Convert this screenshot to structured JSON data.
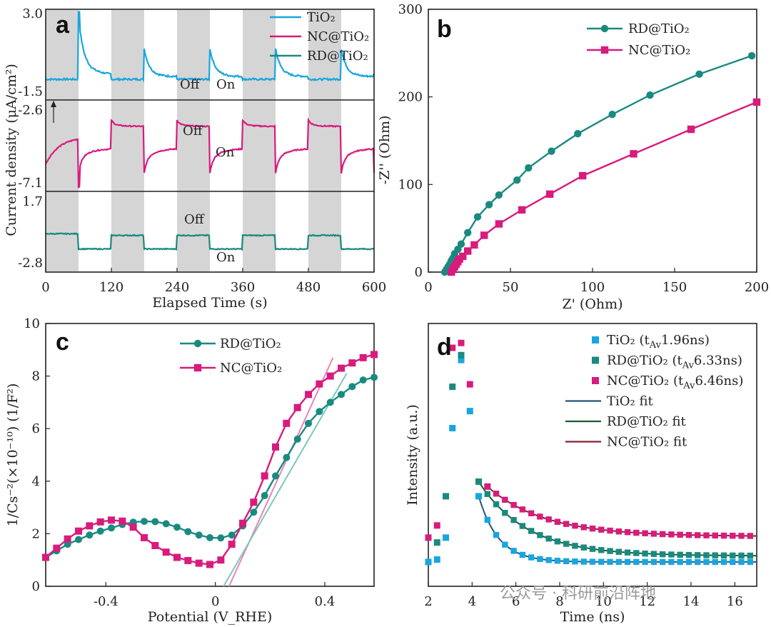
{
  "colors": {
    "tio2": "#19a6df",
    "nc": "#d81b7d",
    "rd": "#1a8a80",
    "tio2_fit": "#27537a",
    "rd_fit": "#1f5a2c",
    "nc_fit": "#8a1f2a",
    "nc_line": "#eb84b5",
    "rd_line": "#7cc7bb",
    "shade": "#d5d5d5"
  },
  "watermark": "公众号 · 科研前沿阵地",
  "chart_data": [
    {
      "id": "a",
      "type": "line",
      "panel_label": "a",
      "xlabel": "Elapsed Time (s)",
      "ylabel": "Current density (μA/cm²)",
      "xlim": [
        0,
        600
      ],
      "xticks": [
        "0",
        "120",
        "240",
        "360",
        "480",
        "600"
      ],
      "off_periods": [
        [
          0,
          60
        ],
        [
          120,
          180
        ],
        [
          240,
          300
        ],
        [
          360,
          420
        ],
        [
          480,
          540
        ]
      ],
      "legend": [
        "TiO₂",
        "NC@TiO₂",
        "RD@TiO₂"
      ],
      "annotations": {
        "off": "Off",
        "on": "On"
      },
      "series": [
        {
          "name": "TiO₂",
          "ytop_label": "3.0",
          "ybottom_label": "-1.5",
          "profile": {
            "base": 0.23,
            "spike": 0.92,
            "spike_decay": 0.55,
            "step": 0.13
          }
        },
        {
          "name": "NC@TiO₂",
          "ytop_label": "-2.6",
          "ybottom_label": "-7.1",
          "profile": {
            "off_level": 0.72,
            "on_level": 0.35,
            "dip": 0.15
          }
        },
        {
          "name": "RD@TiO₂",
          "ytop_label": "1.7",
          "ybottom_label": "-2.8",
          "profile": {
            "off_level": 0.45,
            "on_level": 0.28
          }
        }
      ]
    },
    {
      "id": "b",
      "type": "line",
      "panel_label": "b",
      "xlabel": "Z' (Ohm)",
      "ylabel": "-Z'' (Ohm)",
      "xlim": [
        0,
        200
      ],
      "ylim": [
        0,
        300
      ],
      "xticks": [
        0,
        50,
        100,
        150,
        200
      ],
      "yticks": [
        0,
        100,
        200,
        300
      ],
      "series": [
        {
          "name": "RD@TiO₂",
          "marker": "circle",
          "x": [
            10,
            11,
            12,
            13,
            14,
            15,
            16,
            18,
            20,
            24,
            30,
            37,
            43,
            54,
            61,
            75,
            91,
            112,
            135,
            165,
            197
          ],
          "y": [
            0,
            3,
            6,
            9,
            13,
            16,
            21,
            26,
            32,
            45,
            63,
            77,
            88,
            105,
            119,
            138,
            158,
            180,
            202,
            226,
            247
          ]
        },
        {
          "name": "NC@TiO₂",
          "marker": "square",
          "x": [
            14,
            15,
            16,
            17,
            18,
            19,
            21,
            24,
            28,
            34,
            43,
            57,
            74,
            94,
            125,
            160,
            200
          ],
          "y": [
            0,
            3,
            6,
            9,
            12,
            15,
            18,
            24,
            31,
            42,
            55,
            71,
            89,
            110,
            135,
            163,
            194
          ]
        }
      ]
    },
    {
      "id": "c",
      "type": "line",
      "panel_label": "c",
      "xlabel": "Potential (V_RHE)",
      "ylabel": "1/Cs⁻²(×10⁻¹⁰) (1/F²)",
      "xlim": [
        -0.62,
        0.58
      ],
      "ylim": [
        0,
        10
      ],
      "xticks": [
        -0.4,
        0,
        0.4
      ],
      "yticks": [
        0,
        2,
        4,
        6,
        8,
        10
      ],
      "series": [
        {
          "name": "RD@TiO₂",
          "marker": "circle",
          "x": [
            -0.62,
            -0.58,
            -0.54,
            -0.5,
            -0.46,
            -0.42,
            -0.38,
            -0.34,
            -0.3,
            -0.26,
            -0.22,
            -0.18,
            -0.14,
            -0.1,
            -0.06,
            -0.02,
            0.02,
            0.06,
            0.1,
            0.14,
            0.18,
            0.22,
            0.26,
            0.3,
            0.34,
            0.38,
            0.42,
            0.46,
            0.5,
            0.54,
            0.58
          ],
          "y": [
            1.1,
            1.35,
            1.6,
            1.78,
            1.95,
            2.1,
            2.22,
            2.35,
            2.44,
            2.47,
            2.46,
            2.38,
            2.25,
            2.08,
            1.95,
            1.85,
            1.84,
            1.95,
            2.3,
            2.82,
            3.45,
            4.2,
            4.9,
            5.6,
            6.2,
            6.65,
            7.0,
            7.3,
            7.6,
            7.85,
            7.95
          ]
        },
        {
          "name": "NC@TiO₂",
          "marker": "square",
          "x": [
            -0.62,
            -0.58,
            -0.54,
            -0.5,
            -0.46,
            -0.42,
            -0.38,
            -0.34,
            -0.3,
            -0.26,
            -0.22,
            -0.18,
            -0.14,
            -0.1,
            -0.06,
            -0.02,
            0.02,
            0.06,
            0.1,
            0.14,
            0.18,
            0.22,
            0.26,
            0.3,
            0.34,
            0.38,
            0.42,
            0.46,
            0.5,
            0.54,
            0.58
          ],
          "y": [
            1.1,
            1.45,
            1.8,
            2.1,
            2.3,
            2.45,
            2.52,
            2.48,
            2.25,
            1.85,
            1.55,
            1.3,
            1.1,
            0.98,
            0.88,
            0.83,
            1.0,
            1.6,
            2.4,
            3.2,
            4.2,
            5.3,
            6.2,
            6.8,
            7.3,
            7.7,
            8.0,
            8.3,
            8.5,
            8.7,
            8.82
          ]
        }
      ],
      "fit_lines": [
        {
          "name": "NC@TiO₂ fit",
          "x": [
            0.05,
            0.43
          ],
          "y": [
            0.0,
            8.7
          ]
        },
        {
          "name": "RD@TiO₂ fit",
          "x": [
            0.03,
            0.48
          ],
          "y": [
            0.0,
            8.1
          ]
        }
      ]
    },
    {
      "id": "d",
      "type": "scatter",
      "panel_label": "d",
      "xlabel": "Time (ns)",
      "ylabel": "Intensity (a.u.)",
      "xlim": [
        2,
        17
      ],
      "ylim": [
        0,
        1
      ],
      "xticks": [
        2,
        4,
        6,
        8,
        10,
        12,
        14,
        16
      ],
      "legend": [
        {
          "label": "TiO₂ (t",
          "sub": "Av",
          "after": "1.96ns)",
          "type": "marker"
        },
        {
          "label": "RD@TiO₂ (t",
          "sub": "Av",
          "after": "6.33ns)",
          "type": "marker"
        },
        {
          "label": "NC@TiO₂ (t",
          "sub": "Av",
          "after": "6.46ns)",
          "type": "marker"
        },
        {
          "label": "TiO₂ fit",
          "type": "line"
        },
        {
          "label": "RD@TiO₂ fit",
          "type": "line"
        },
        {
          "label": "NC@TiO₂ fit",
          "type": "line"
        }
      ],
      "series": [
        {
          "name": "TiO₂",
          "tau": 0.9,
          "base": 0.1,
          "points_x": [
            2.0,
            2.4,
            2.8,
            3.1,
            3.5,
            3.9,
            4.3
          ],
          "points_y": [
            0.1,
            0.11,
            0.2,
            0.65,
            0.93,
            0.72,
            0.37
          ]
        },
        {
          "name": "RD@TiO₂",
          "tau": 2.2,
          "base": 0.125,
          "points_x": [
            2.4,
            2.8,
            3.1,
            3.5,
            4.3
          ],
          "points_y": [
            0.18,
            0.37,
            0.82,
            0.95,
            0.43
          ]
        },
        {
          "name": "NC@TiO₂",
          "tau": 2.6,
          "base": 0.205,
          "points_x": [
            2.0,
            2.4,
            3.1,
            3.5,
            3.9,
            4.7
          ],
          "points_y": [
            0.2,
            0.25,
            0.98,
            1.0,
            0.83,
            0.41
          ]
        }
      ],
      "decay_start": 4.7
    }
  ]
}
